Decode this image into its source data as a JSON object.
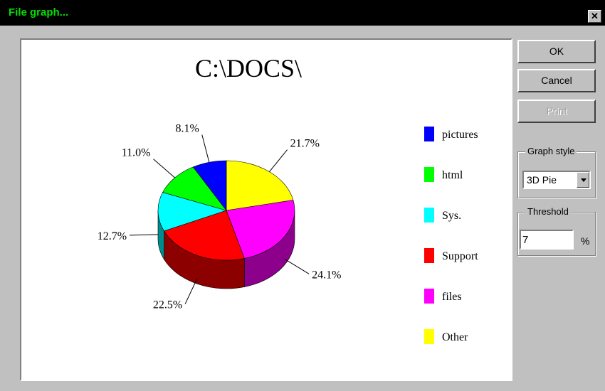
{
  "window": {
    "title": "File graph...",
    "close_label": "✕"
  },
  "buttons": {
    "ok": "OK",
    "cancel": "Cancel",
    "print": "Print"
  },
  "graph_style": {
    "label": "Graph style",
    "value": "3D Pie"
  },
  "threshold": {
    "label": "Threshold",
    "value": "7",
    "unit": "%"
  },
  "chart_data": {
    "type": "pie",
    "title": "C:\\DOCS\\",
    "style": "3d",
    "legend": "right",
    "slices": [
      {
        "label": "Other",
        "value": 21.7,
        "display": "21.7%",
        "color": "#ffff00"
      },
      {
        "label": "files",
        "value": 24.1,
        "display": "24.1%",
        "color": "#ff00ff"
      },
      {
        "label": "Support",
        "value": 22.5,
        "display": "22.5%",
        "color": "#ff0000"
      },
      {
        "label": "Sys.",
        "value": 12.7,
        "display": "12.7%",
        "color": "#00ffff"
      },
      {
        "label": "html",
        "value": 11.0,
        "display": "11.0%",
        "color": "#00ff00"
      },
      {
        "label": "pictures",
        "value": 8.1,
        "display": "8.1%",
        "color": "#0000ff"
      }
    ],
    "legend_order": [
      "pictures",
      "html",
      "Sys.",
      "Support",
      "files",
      "Other"
    ]
  }
}
